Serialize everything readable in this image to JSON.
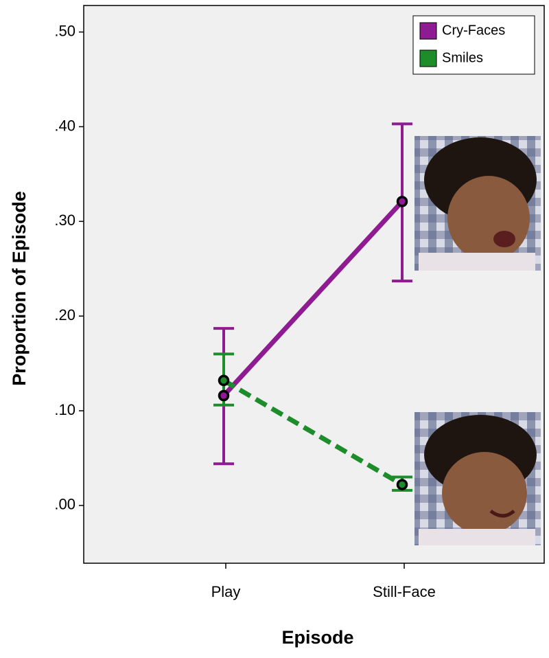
{
  "chart_data": {
    "type": "line",
    "x_label": "Episode",
    "y_label": "Proportion of Episode",
    "categories": [
      "Play",
      "Still-Face"
    ],
    "series": [
      {
        "name": "Cry-Faces",
        "color": "#8e1b91",
        "line_style": "solid",
        "values": [
          0.116,
          0.321
        ],
        "lower": [
          0.044,
          0.237
        ],
        "upper": [
          0.187,
          0.403
        ]
      },
      {
        "name": "Smiles",
        "color": "#1d8c2a",
        "line_style": "dashed",
        "values": [
          0.132,
          0.022
        ],
        "lower": [
          0.106,
          0.016
        ],
        "upper": [
          0.16,
          0.03
        ]
      }
    ],
    "ylim": [
      -0.061,
      0.528
    ],
    "yticks": [
      {
        "value": 0,
        "label": ".00"
      },
      {
        "value": 0.1,
        "label": ".10"
      },
      {
        "value": 0.2,
        "label": ".20"
      },
      {
        "value": 0.3,
        "label": ".30"
      },
      {
        "value": 0.4,
        "label": ".40"
      },
      {
        "value": 0.5,
        "label": ".50"
      }
    ],
    "legend": "top-right"
  }
}
